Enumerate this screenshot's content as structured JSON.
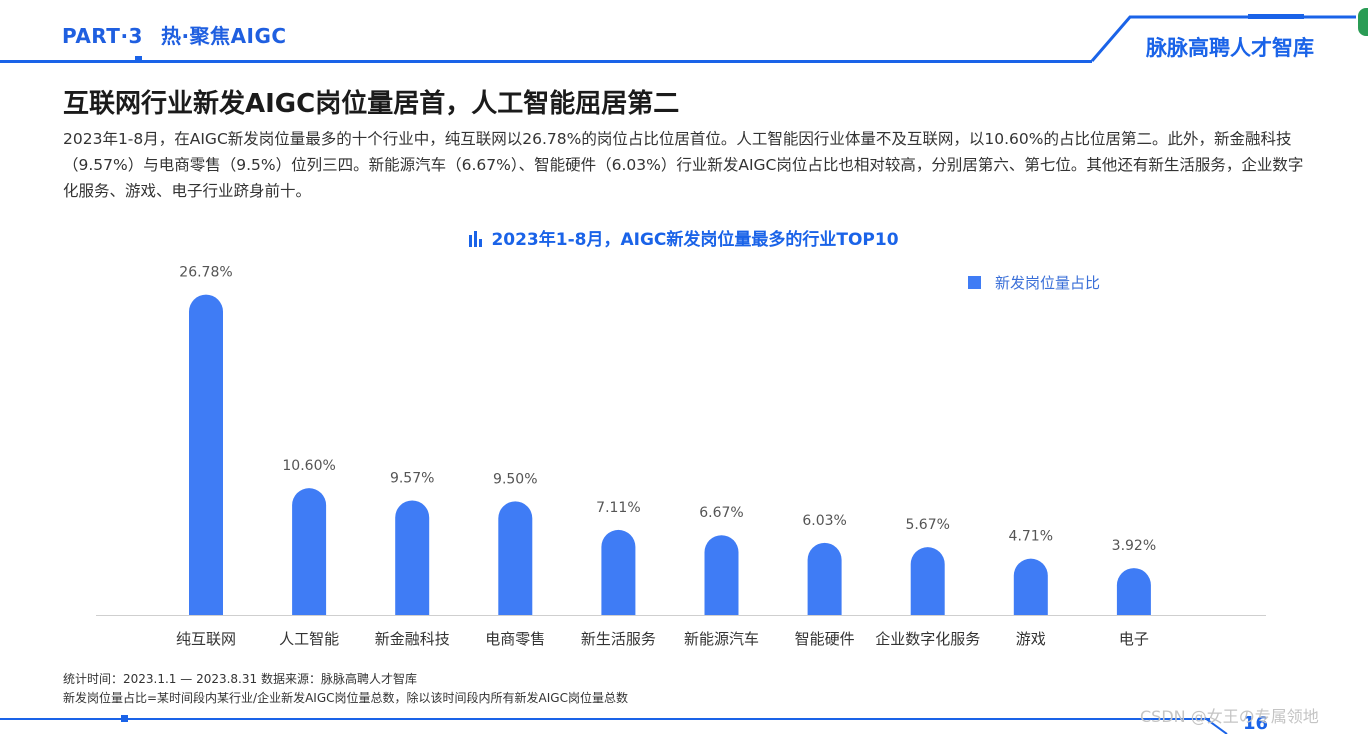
{
  "header": {
    "part": "PART·3",
    "section": "热·聚焦AIGC",
    "brand": "脉脉高聘人才智库"
  },
  "page_title": "互联网行业新发AIGC岗位量居首，人工智能屈居第二",
  "description": "2023年1-8月，在AIGC新发岗位量最多的十个行业中，纯互联网以26.78%的岗位占比位居首位。人工智能因行业体量不及互联网，以10.60%的占比位居第二。此外，新金融科技（9.57%）与电商零售（9.5%）位列三四。新能源汽车（6.67%）、智能硬件（6.03%）行业新发AIGC岗位占比也相对较高，分别居第六、第七位。其他还有新生活服务，企业数字化服务、游戏、电子行业跻身前十。",
  "chart_data": {
    "type": "bar",
    "title": "2023年1-8月，AIGC新发岗位量最多的行业TOP10",
    "categories": [
      "纯互联网",
      "人工智能",
      "新金融科技",
      "电商零售",
      "新生活服务",
      "新能源汽车",
      "智能硬件",
      "企业数字化服务",
      "游戏",
      "电子"
    ],
    "series": [
      {
        "name": "新发岗位量占比",
        "values": [
          26.78,
          10.6,
          9.57,
          9.5,
          7.11,
          6.67,
          6.03,
          5.67,
          4.71,
          3.92
        ],
        "labels": [
          "26.78%",
          "10.60%",
          "9.57%",
          "9.50%",
          "7.11%",
          "6.67%",
          "6.03%",
          "5.67%",
          "4.71%",
          "3.92%"
        ],
        "color": "#3f7cf5"
      }
    ],
    "ylim": [
      0,
      28
    ],
    "grid": false,
    "legend_position": "top-right"
  },
  "footer": {
    "stats": "统计时间：2023.1.1 — 2023.8.31   数据来源：脉脉高聘人才智库",
    "definition": "新发岗位量占比=某时间段内某行业/企业新发AIGC岗位量总数，除以该时间段内所有新发AIGC岗位量总数"
  },
  "page_number": "16",
  "watermark": "CSDN @女王の专属领地",
  "colors": {
    "accent": "#1a63e8",
    "bar": "#3f7cf5"
  }
}
